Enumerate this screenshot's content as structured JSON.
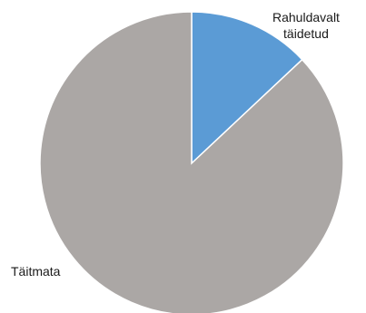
{
  "chart_data": {
    "type": "pie",
    "title": "",
    "slices": [
      {
        "label_lines": [
          "Rahuldavalt",
          "täidetud"
        ],
        "value": 13,
        "color": "#5b9bd5"
      },
      {
        "label_lines": [
          "Täitmata"
        ],
        "value": 87,
        "color": "#aba7a5"
      }
    ],
    "start_angle": "top",
    "direction": "clockwise",
    "legend": "none"
  }
}
